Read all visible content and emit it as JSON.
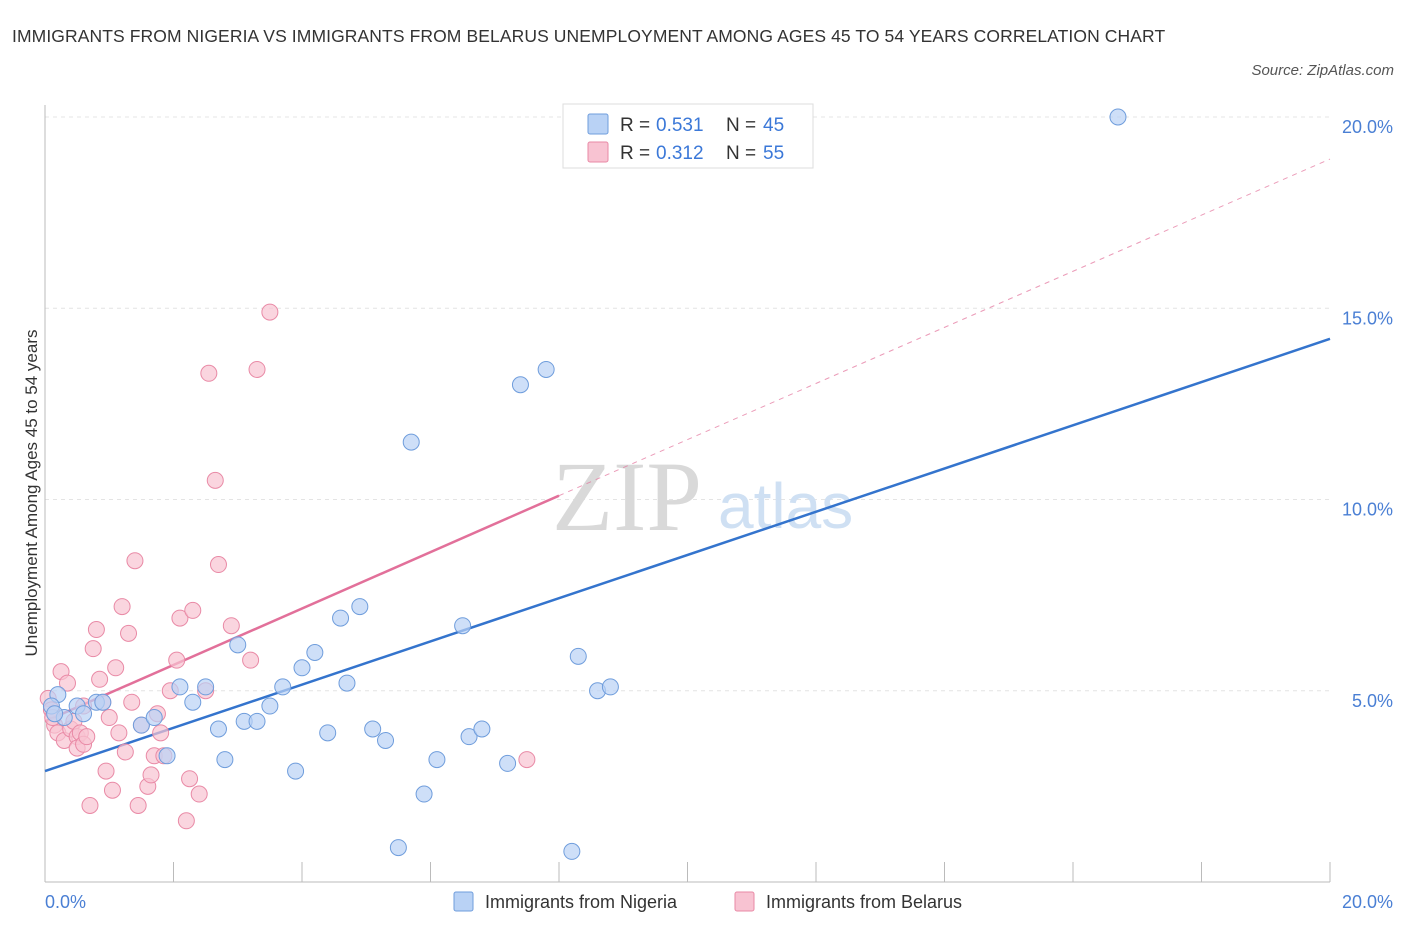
{
  "title": "IMMIGRANTS FROM NIGERIA VS IMMIGRANTS FROM BELARUS UNEMPLOYMENT AMONG AGES 45 TO 54 YEARS CORRELATION CHART",
  "source": "Source: ZipAtlas.com",
  "watermark": {
    "zip": "ZIP",
    "atlas": "atlas"
  },
  "colors": {
    "nigeria_fill": "#b9d2f5",
    "nigeria_stroke": "#6f9ddc",
    "nigeria_line": "#3474cd",
    "belarus_fill": "#f8c3d2",
    "belarus_stroke": "#e98aa6",
    "belarus_line": "#e2709a",
    "grid": "#e4e4e4",
    "tick_text": "#4a7fd4"
  },
  "legend": {
    "rows": [
      {
        "r_label": "R = ",
        "r_value": "0.531",
        "n_label": "N = ",
        "n_value": "45"
      },
      {
        "r_label": "R = ",
        "r_value": "0.312",
        "n_label": "N = ",
        "n_value": "55"
      }
    ]
  },
  "chart_data": {
    "type": "scatter",
    "title": "IMMIGRANTS FROM NIGERIA VS IMMIGRANTS FROM BELARUS UNEMPLOYMENT AMONG AGES 45 TO 54 YEARS CORRELATION CHART",
    "xlabel": "",
    "ylabel": "Unemployment Among Ages 45 to 54 years",
    "xlim": [
      0,
      20
    ],
    "ylim": [
      0,
      20
    ],
    "x_tick_labels": [
      "0.0%",
      "20.0%"
    ],
    "y_ticks": [
      5,
      10,
      15,
      20
    ],
    "y_tick_labels": [
      "5.0%",
      "10.0%",
      "15.0%",
      "20.0%"
    ],
    "series": [
      {
        "name": "Immigrants from Nigeria",
        "R": 0.531,
        "N": 45,
        "trend": {
          "x": [
            0,
            20
          ],
          "y": [
            2.9,
            14.2
          ],
          "style": "solid"
        },
        "points": [
          [
            0.2,
            4.9
          ],
          [
            0.1,
            4.6
          ],
          [
            0.3,
            4.3
          ],
          [
            0.5,
            4.6
          ],
          [
            0.6,
            4.4
          ],
          [
            0.8,
            4.7
          ],
          [
            0.9,
            4.7
          ],
          [
            1.5,
            4.1
          ],
          [
            1.7,
            4.3
          ],
          [
            1.9,
            3.3
          ],
          [
            2.1,
            5.1
          ],
          [
            2.3,
            4.7
          ],
          [
            2.5,
            5.1
          ],
          [
            2.7,
            4.0
          ],
          [
            2.8,
            3.2
          ],
          [
            3.0,
            6.2
          ],
          [
            3.1,
            4.2
          ],
          [
            3.3,
            4.2
          ],
          [
            3.5,
            4.6
          ],
          [
            3.7,
            5.1
          ],
          [
            3.9,
            2.9
          ],
          [
            4.0,
            5.6
          ],
          [
            4.2,
            6.0
          ],
          [
            4.4,
            3.9
          ],
          [
            4.6,
            6.9
          ],
          [
            4.7,
            5.2
          ],
          [
            4.9,
            7.2
          ],
          [
            5.1,
            4.0
          ],
          [
            5.3,
            3.7
          ],
          [
            5.5,
            0.9
          ],
          [
            5.7,
            11.5
          ],
          [
            5.9,
            2.3
          ],
          [
            6.1,
            3.2
          ],
          [
            6.5,
            6.7
          ],
          [
            6.6,
            3.8
          ],
          [
            6.8,
            4.0
          ],
          [
            7.2,
            3.1
          ],
          [
            7.4,
            13.0
          ],
          [
            7.8,
            13.4
          ],
          [
            8.2,
            0.8
          ],
          [
            8.3,
            5.9
          ],
          [
            8.6,
            5.0
          ],
          [
            8.8,
            5.1
          ],
          [
            16.7,
            20.0
          ],
          [
            0.15,
            4.4
          ]
        ]
      },
      {
        "name": "Immigrants from Belarus",
        "R": 0.312,
        "N": 55,
        "trend": {
          "x": [
            0,
            8
          ],
          "y": [
            4.2,
            10.1
          ],
          "style": "solid",
          "extended": {
            "x": [
              8,
              20
            ],
            "y": [
              10.1,
              18.9
            ],
            "style": "dashed"
          }
        },
        "points": [
          [
            0.05,
            4.8
          ],
          [
            0.1,
            4.5
          ],
          [
            0.15,
            4.1
          ],
          [
            0.2,
            3.9
          ],
          [
            0.25,
            5.5
          ],
          [
            0.3,
            3.7
          ],
          [
            0.35,
            5.2
          ],
          [
            0.4,
            4.0
          ],
          [
            0.45,
            4.2
          ],
          [
            0.5,
            3.8
          ],
          [
            0.5,
            3.5
          ],
          [
            0.55,
            3.9
          ],
          [
            0.6,
            3.6
          ],
          [
            0.65,
            3.8
          ],
          [
            0.7,
            2.0
          ],
          [
            0.75,
            6.1
          ],
          [
            0.8,
            6.6
          ],
          [
            0.85,
            5.3
          ],
          [
            0.9,
            4.7
          ],
          [
            0.95,
            2.9
          ],
          [
            1.0,
            4.3
          ],
          [
            1.05,
            2.4
          ],
          [
            1.1,
            5.6
          ],
          [
            1.15,
            3.9
          ],
          [
            1.2,
            7.2
          ],
          [
            1.25,
            3.4
          ],
          [
            1.3,
            6.5
          ],
          [
            1.35,
            4.7
          ],
          [
            1.4,
            8.4
          ],
          [
            1.45,
            2.0
          ],
          [
            1.5,
            4.1
          ],
          [
            1.6,
            2.5
          ],
          [
            1.65,
            2.8
          ],
          [
            1.7,
            3.3
          ],
          [
            1.75,
            4.4
          ],
          [
            1.8,
            3.9
          ],
          [
            1.85,
            3.3
          ],
          [
            1.95,
            5.0
          ],
          [
            2.05,
            5.8
          ],
          [
            2.1,
            6.9
          ],
          [
            2.2,
            1.6
          ],
          [
            2.25,
            2.7
          ],
          [
            2.3,
            7.1
          ],
          [
            2.4,
            2.3
          ],
          [
            2.5,
            5.0
          ],
          [
            2.55,
            13.3
          ],
          [
            2.65,
            10.5
          ],
          [
            2.7,
            8.3
          ],
          [
            2.9,
            6.7
          ],
          [
            3.2,
            5.8
          ],
          [
            3.3,
            13.4
          ],
          [
            3.5,
            14.9
          ],
          [
            7.5,
            3.2
          ],
          [
            0.12,
            4.3
          ],
          [
            0.6,
            4.6
          ]
        ]
      }
    ],
    "legend_position": "top-center"
  }
}
